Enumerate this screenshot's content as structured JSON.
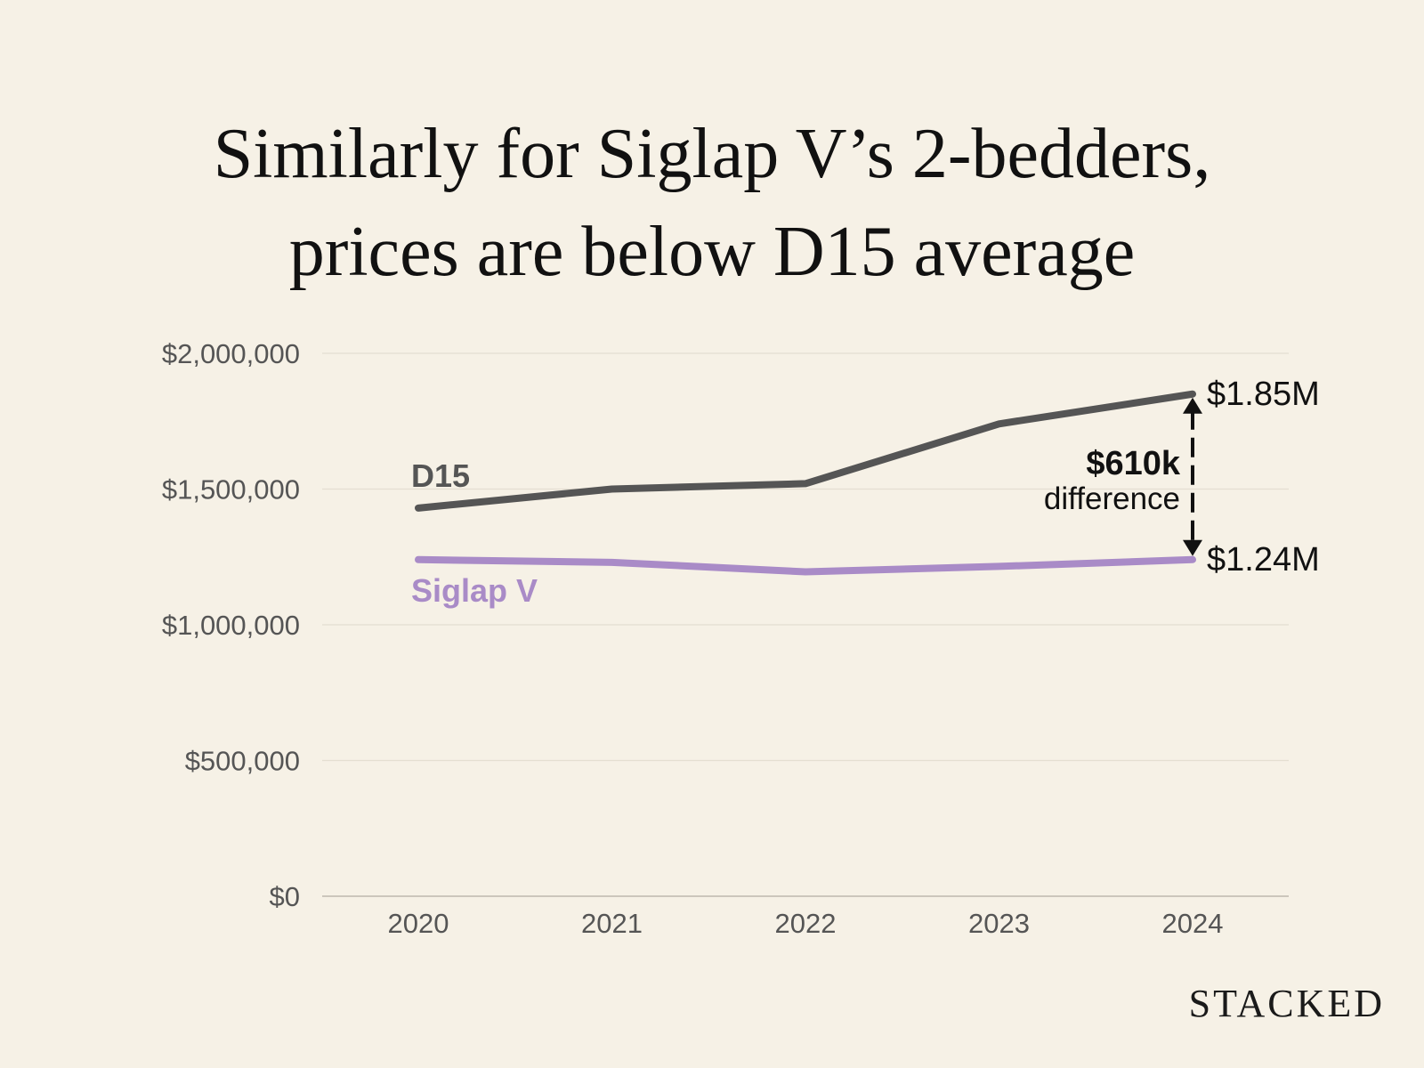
{
  "chart_data": {
    "type": "line",
    "title": [
      "Similarly for Siglap V’s 2-bedders,",
      "prices are below D15 average"
    ],
    "x": [
      "2020",
      "2021",
      "2022",
      "2023",
      "2024"
    ],
    "ylim": [
      0,
      2000000
    ],
    "yticks": [
      0,
      500000,
      1000000,
      1500000,
      2000000
    ],
    "ytick_labels": [
      "$0",
      "$500,000",
      "$1,000,000",
      "$1,500,000",
      "$2,000,000"
    ],
    "grid": true,
    "series": [
      {
        "name": "D15",
        "color": "#555555",
        "values": [
          1430000,
          1500000,
          1520000,
          1740000,
          1850000
        ]
      },
      {
        "name": "Siglap V",
        "color": "#A98BC7",
        "values": [
          1240000,
          1230000,
          1195000,
          1215000,
          1240000
        ]
      }
    ],
    "end_labels": [
      "$1.85M",
      "$1.24M"
    ],
    "annotation": {
      "value": "$610k",
      "text": "difference"
    }
  },
  "brand": "STACKED"
}
